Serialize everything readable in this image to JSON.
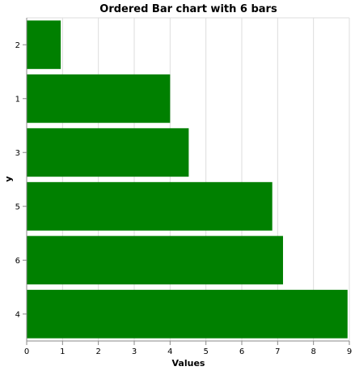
{
  "chart_data": {
    "type": "bar",
    "orientation": "horizontal",
    "title": "Ordered Bar chart with 6 bars",
    "xlabel": "Values",
    "ylabel": "y",
    "categories": [
      "2",
      "1",
      "3",
      "5",
      "6",
      "4"
    ],
    "values": [
      0.95,
      4.0,
      4.52,
      6.85,
      7.15,
      8.95
    ],
    "xlim": [
      0,
      9
    ],
    "xticks": [
      0,
      1,
      2,
      3,
      4,
      5,
      6,
      7,
      8,
      9
    ],
    "grid": true,
    "legend": "none",
    "bar_color": "#008000",
    "grid_color": "#dddddd",
    "axis_color": "#888888"
  }
}
